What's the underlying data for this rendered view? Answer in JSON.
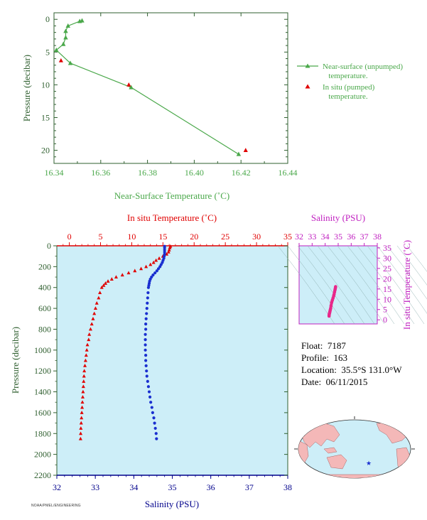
{
  "colors": {
    "green": "#4aa84a",
    "axis_green": "#2f5f2f",
    "red": "#e00000",
    "blue": "#1a2fd0",
    "magenta": "#c020c0",
    "pink": "#e8288a",
    "plot_bg": "#cdeef8",
    "navy": "#00008b"
  },
  "float_info": {
    "float_label": "Float:",
    "float_value": "7187",
    "profile_label": "Profile:",
    "profile_value": "163",
    "location_label": "Location:",
    "location_value": "35.5°S  131.0°W",
    "date_label": "Date:",
    "date_value": "06/11/2015"
  },
  "credit": "NOAA/PMEL/ENGINEERING",
  "chart_data": [
    {
      "id": "near_surface",
      "type": "line",
      "xlabel": "Near-Surface Temperature (˚C)",
      "ylabel": "Pressure (decibar)",
      "xlim": [
        16.34,
        16.44
      ],
      "ylim": [
        22,
        -1
      ],
      "xticks": [
        "16.34",
        "16.36",
        "16.38",
        "16.40",
        "16.42",
        "16.44"
      ],
      "xtick_values": [
        16.34,
        16.36,
        16.38,
        16.4,
        16.42,
        16.44
      ],
      "yticks": [
        "0",
        "5",
        "10",
        "15",
        "20"
      ],
      "ytick_values": [
        0,
        5,
        10,
        15,
        20
      ],
      "legend_position": "right",
      "series": [
        {
          "name": "Near-surface (unpumped) temperature.",
          "legend_lines": [
            "Near-surface (unpumped)",
            "temperature."
          ],
          "marker": "triangle",
          "line": true,
          "x": [
            16.352,
            16.351,
            16.346,
            16.345,
            16.345,
            16.344,
            16.341,
            16.347,
            16.373,
            16.419
          ],
          "y": [
            0.2,
            0.3,
            1.0,
            1.8,
            2.8,
            3.8,
            4.7,
            6.7,
            10.4,
            20.6
          ]
        },
        {
          "name": "In situ (pumped) temperature.",
          "legend_lines": [
            "In situ (pumped)",
            "temperature."
          ],
          "marker": "triangle",
          "line": false,
          "x": [
            16.343,
            16.372,
            16.422
          ],
          "y": [
            6.3,
            10.0,
            20.0
          ]
        }
      ]
    },
    {
      "id": "profile",
      "type": "scatter",
      "x_top_label": "In situ Temperature (˚C)",
      "x_bottom_label": "Salinity (PSU)",
      "ylabel": "Pressure (decibar)",
      "temp_lim": [
        -2,
        35
      ],
      "sal_lim": [
        32,
        38
      ],
      "ylim": [
        2200,
        0
      ],
      "temp_ticks": [
        "0",
        "5",
        "10",
        "15",
        "20",
        "25",
        "30",
        "35"
      ],
      "temp_tick_values": [
        0,
        5,
        10,
        15,
        20,
        25,
        30,
        35
      ],
      "sal_ticks": [
        "32",
        "33",
        "34",
        "35",
        "36",
        "37",
        "38"
      ],
      "sal_tick_values": [
        32,
        33,
        34,
        35,
        36,
        37,
        38
      ],
      "yticks": [
        "0",
        "200",
        "400",
        "600",
        "800",
        "1000",
        "1200",
        "1400",
        "1600",
        "1800",
        "2000",
        "2200"
      ],
      "ytick_values": [
        0,
        200,
        400,
        600,
        800,
        1000,
        1200,
        1400,
        1600,
        1800,
        2000,
        2200
      ],
      "temperature": {
        "p": [
          5,
          20,
          40,
          60,
          80,
          100,
          120,
          140,
          160,
          180,
          200,
          220,
          240,
          260,
          280,
          300,
          320,
          340,
          360,
          380,
          400,
          450,
          500,
          550,
          600,
          650,
          700,
          750,
          800,
          850,
          900,
          950,
          1000,
          1050,
          1100,
          1150,
          1200,
          1250,
          1300,
          1350,
          1400,
          1450,
          1500,
          1550,
          1600,
          1650,
          1700,
          1750,
          1800,
          1850
        ],
        "t": [
          16.2,
          16.1,
          16.0,
          15.9,
          15.6,
          15.0,
          14.4,
          13.9,
          13.5,
          13.0,
          12.3,
          11.5,
          10.5,
          9.5,
          8.5,
          7.5,
          6.8,
          6.2,
          5.8,
          5.5,
          5.2,
          4.9,
          4.7,
          4.4,
          4.2,
          4.0,
          3.8,
          3.6,
          3.4,
          3.2,
          3.1,
          2.9,
          2.8,
          2.7,
          2.6,
          2.5,
          2.4,
          2.35,
          2.3,
          2.25,
          2.2,
          2.15,
          2.1,
          2.05,
          2.0,
          1.95,
          1.9,
          1.85,
          1.82,
          1.8
        ]
      },
      "salinity": {
        "p": [
          5,
          20,
          40,
          60,
          80,
          100,
          120,
          140,
          160,
          180,
          200,
          220,
          240,
          260,
          280,
          300,
          320,
          340,
          360,
          380,
          400,
          450,
          500,
          550,
          600,
          650,
          700,
          750,
          800,
          850,
          900,
          950,
          1000,
          1050,
          1100,
          1150,
          1200,
          1250,
          1300,
          1350,
          1400,
          1450,
          1500,
          1550,
          1600,
          1650,
          1700,
          1750,
          1800,
          1850
        ],
        "s": [
          34.8,
          34.8,
          34.8,
          34.8,
          34.8,
          34.79,
          34.78,
          34.76,
          34.74,
          34.71,
          34.68,
          34.64,
          34.6,
          34.55,
          34.5,
          34.46,
          34.43,
          34.41,
          34.4,
          34.39,
          34.38,
          34.37,
          34.36,
          34.35,
          34.34,
          34.33,
          34.32,
          34.31,
          34.31,
          34.3,
          34.3,
          34.3,
          34.3,
          34.31,
          34.31,
          34.32,
          34.33,
          34.34,
          34.36,
          34.38,
          34.4,
          34.42,
          34.44,
          34.47,
          34.49,
          34.52,
          34.54,
          34.56,
          34.58,
          34.59
        ]
      }
    },
    {
      "id": "ts_diagram",
      "type": "scatter",
      "title": "Salinity (PSU)",
      "ylabel": "In situ Temperature (˚C)",
      "xlim": [
        32,
        38
      ],
      "ylim": [
        -2,
        36
      ],
      "xticks": [
        "32",
        "33",
        "34",
        "35",
        "36",
        "37",
        "38"
      ],
      "xtick_values": [
        32,
        33,
        34,
        35,
        36,
        37,
        38
      ],
      "yticks": [
        "0",
        "5",
        "10",
        "15",
        "20",
        "25",
        "30",
        "35"
      ],
      "ytick_values": [
        0,
        5,
        10,
        15,
        20,
        25,
        30,
        35
      ],
      "points": {
        "s": [
          34.3,
          34.3,
          34.31,
          34.33,
          34.35,
          34.37,
          34.39,
          34.42,
          34.45,
          34.5,
          34.55,
          34.6,
          34.65,
          34.68,
          34.72,
          34.75,
          34.77,
          34.79,
          34.8
        ],
        "t": [
          1.8,
          2.2,
          2.6,
          3.1,
          3.6,
          4.2,
          4.8,
          5.5,
          6.8,
          8.5,
          9.5,
          10.5,
          11.5,
          12.3,
          13.5,
          14.4,
          15.0,
          15.6,
          16.1
        ]
      }
    }
  ]
}
